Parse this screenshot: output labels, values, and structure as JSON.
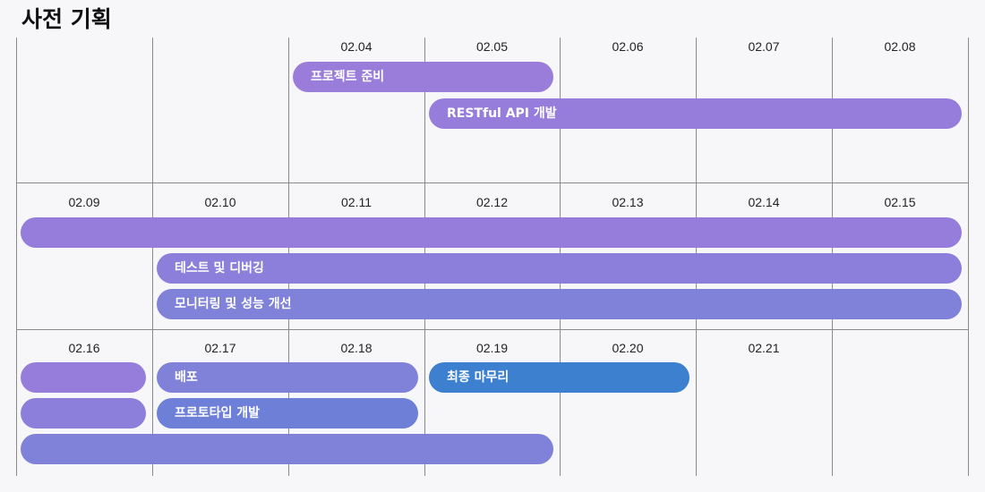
{
  "title": "사전 기획",
  "colors": {
    "purple": "#967cd9",
    "lavender": "#8a7fd9",
    "slate": "#7f82d8",
    "blue": "#6d7fd6",
    "bright_blue": "#3d80d0"
  },
  "weeks": [
    {
      "dates": [
        "",
        "",
        "02.04",
        "02.05",
        "02.06",
        "02.07",
        "02.08"
      ],
      "events": [
        {
          "label": "프로젝트 준비",
          "start_col": 2,
          "end_col": 4,
          "color": "#9a7ddb"
        },
        {
          "label": "RESTful API 개발",
          "start_col": 3,
          "end_col": 7,
          "color": "#967cdb"
        }
      ]
    },
    {
      "dates": [
        "02.09",
        "02.10",
        "02.11",
        "02.12",
        "02.13",
        "02.14",
        "02.15"
      ],
      "events": [
        {
          "label": "",
          "start_col": 0,
          "end_col": 7,
          "color": "#967cdb"
        },
        {
          "label": "테스트 및 디버깅",
          "start_col": 1,
          "end_col": 7,
          "color": "#8b7fdb"
        },
        {
          "label": "모니터링 및 성능 개선",
          "start_col": 1,
          "end_col": 7,
          "color": "#7f82d8"
        }
      ]
    },
    {
      "dates": [
        "02.16",
        "02.17",
        "02.18",
        "02.19",
        "02.20",
        "02.21",
        ""
      ],
      "events": [
        {
          "label": "",
          "start_col": 0,
          "end_col": 1,
          "color": "#967cdb"
        },
        {
          "label": "배포",
          "start_col": 1,
          "end_col": 3,
          "color": "#7f82d8"
        },
        {
          "label": "최종 마무리",
          "start_col": 3,
          "end_col": 5,
          "color": "#3d80d0"
        },
        {
          "label": "",
          "start_col": 0,
          "end_col": 1,
          "color": "#8b7fdb"
        },
        {
          "label": "프로토타입 개발",
          "start_col": 1,
          "end_col": 3,
          "color": "#6d7fd6"
        },
        {
          "label": "",
          "start_col": 0,
          "end_col": 4,
          "color": "#7f82d8"
        }
      ]
    }
  ]
}
